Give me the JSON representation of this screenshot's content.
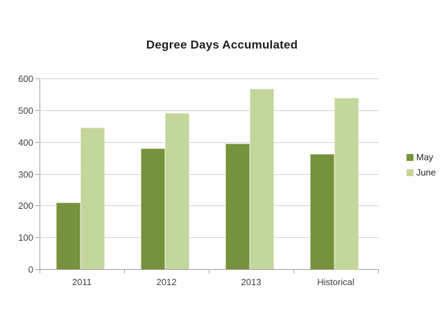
{
  "chart_data": {
    "type": "bar",
    "title": "Degree Days Accumulated",
    "categories": [
      "2011",
      "2012",
      "2013",
      "Historical"
    ],
    "series": [
      {
        "name": "May",
        "color": "#76923C",
        "values": [
          210,
          380,
          395,
          362
        ]
      },
      {
        "name": "June",
        "color": "#C3D69B",
        "values": [
          445,
          490,
          568,
          540
        ]
      }
    ],
    "xlabel": "",
    "ylabel": "",
    "ylim": [
      0,
      600
    ],
    "yticks": [
      0,
      100,
      200,
      300,
      400,
      500,
      600
    ],
    "grid": "horizontal",
    "legend_position": "right"
  },
  "colors": {
    "background": "#FFFFFF",
    "gridline": "#D2D2D2",
    "axis_line": "#9E9E9E",
    "tick_label_text": "#404040",
    "title_text": "#1F1F1F"
  }
}
